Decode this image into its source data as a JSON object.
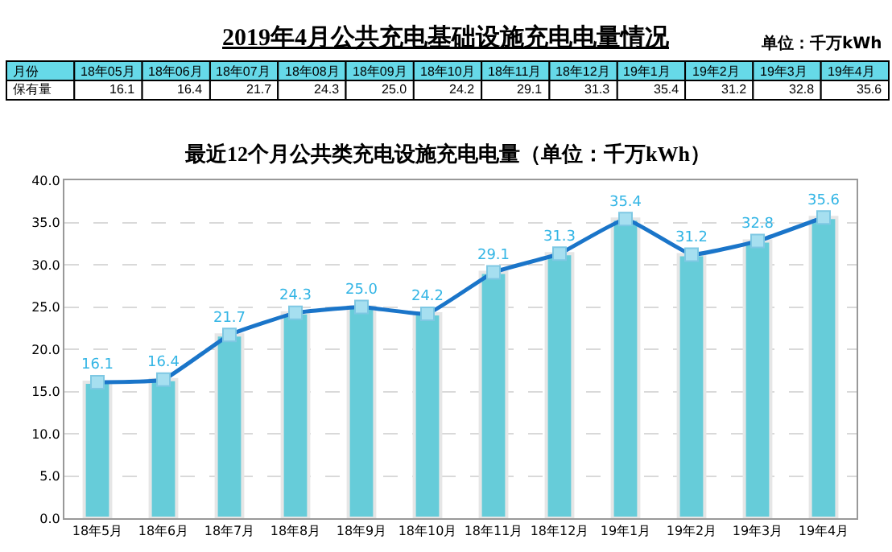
{
  "chart_data": [
    {
      "type": "other",
      "title": "2019年4月公共充电基础设施充电电量情况",
      "annotations": [
        "单位：千万kWh"
      ],
      "xlabel": "月份",
      "ylabel": "保有量",
      "categories": [
        "18年05月",
        "18年06月",
        "18年07月",
        "18年08月",
        "18年09月",
        "18年10月",
        "18年11月",
        "18年12月",
        "19年1月",
        "19年2月",
        "19年3月",
        "19年4月"
      ],
      "value_labels": [
        "16.1",
        "16.4",
        "21.7",
        "24.3",
        "25.0",
        "24.2",
        "29.1",
        "31.3",
        "35.4",
        "31.2",
        "32.8",
        "35.6"
      ]
    },
    {
      "type": "bar",
      "title": "最近12个月公共类充电设施充电电量（单位：千万kWh）",
      "categories": [
        "18年5月",
        "18年6月",
        "18年7月",
        "18年8月",
        "18年9月",
        "18年10月",
        "18年11月",
        "18年12月",
        "19年1月",
        "19年2月",
        "19年3月",
        "19年4月"
      ],
      "series": [
        {
          "type": "bar",
          "color": "#66ccd9",
          "values": [
            16.1,
            16.4,
            21.7,
            24.3,
            25.0,
            24.2,
            29.1,
            31.3,
            35.4,
            31.2,
            32.8,
            35.6
          ]
        },
        {
          "type": "line",
          "color": "#1a75c9",
          "marker": "square",
          "values": [
            16.1,
            16.4,
            21.7,
            24.3,
            25.0,
            24.2,
            29.1,
            31.3,
            35.4,
            31.2,
            32.8,
            35.6
          ],
          "value_labels": [
            "16.1",
            "16.4",
            "21.7",
            "24.3",
            "25.0",
            "24.2",
            "29.1",
            "31.3",
            "35.4",
            "31.2",
            "32.8",
            "35.6"
          ]
        }
      ],
      "ylim": [
        0,
        40
      ],
      "yticks": [
        {
          "value": 0,
          "label": "0.0"
        },
        {
          "value": 5,
          "label": "5.0"
        },
        {
          "value": 10,
          "label": "10.0"
        },
        {
          "value": 15,
          "label": "15.0"
        },
        {
          "value": 20,
          "label": "20.0"
        },
        {
          "value": 25,
          "label": "25.0"
        },
        {
          "value": 30,
          "label": "30.0"
        },
        {
          "value": 35,
          "label": "35.0"
        },
        {
          "value": 40,
          "label": "40.0"
        }
      ],
      "grid": "y"
    }
  ]
}
